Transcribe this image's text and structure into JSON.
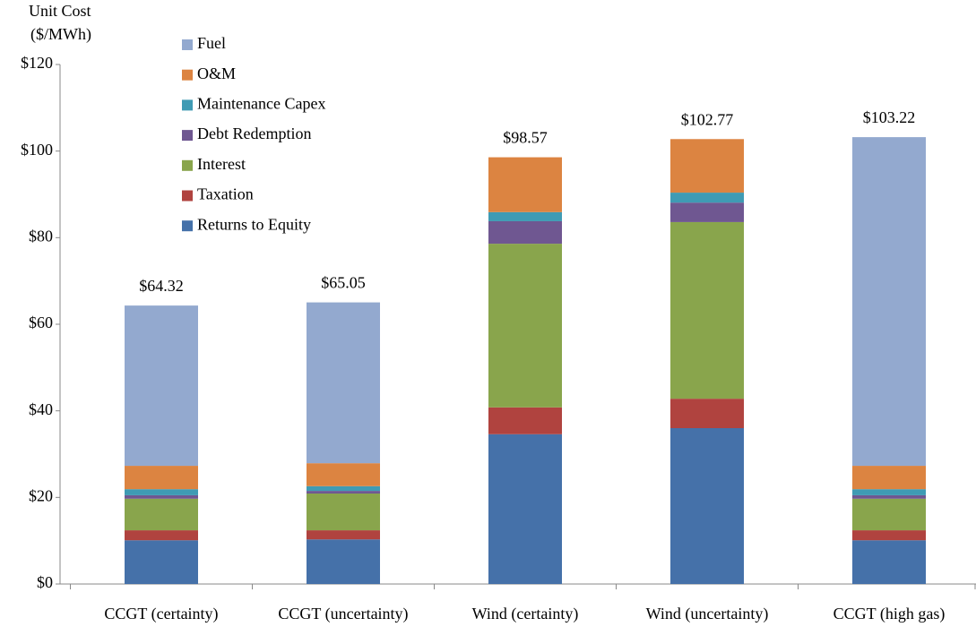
{
  "chart_data": {
    "type": "stacked_bar",
    "ylabel": [
      "Unit Cost",
      "($/MWh)"
    ],
    "categories": [
      "CCGT (certainty)",
      "CCGT (uncertainty)",
      "Wind (certainty)",
      "Wind (uncertainty)",
      "CCGT (high gas)"
    ],
    "series": [
      {
        "name": "Returns to Equity",
        "color": "#4571a9",
        "values": [
          10.1,
          10.3,
          34.6,
          36.0,
          10.1
        ]
      },
      {
        "name": "Taxation",
        "color": "#b0433f",
        "values": [
          2.3,
          2.1,
          6.2,
          6.8,
          2.3
        ]
      },
      {
        "name": "Interest",
        "color": "#89a54c",
        "values": [
          7.3,
          8.5,
          37.8,
          40.8,
          7.3
        ]
      },
      {
        "name": "Debt Redemption",
        "color": "#6f5791",
        "values": [
          0.8,
          0.6,
          5.2,
          4.5,
          0.8
        ]
      },
      {
        "name": "Maintenance Capex",
        "color": "#3f9bb4",
        "values": [
          1.4,
          1.1,
          2.1,
          2.3,
          1.4
        ]
      },
      {
        "name": "O&M",
        "color": "#dc8441",
        "values": [
          5.4,
          5.3,
          12.67,
          12.37,
          5.4
        ]
      },
      {
        "name": "Fuel",
        "color": "#93a9cf",
        "values": [
          37.02,
          37.15,
          0,
          0,
          75.92
        ]
      }
    ],
    "totals": [
      64.32,
      65.05,
      98.57,
      102.77,
      103.22
    ],
    "total_labels": [
      "$64.32",
      "$65.05",
      "$98.57",
      "$102.77",
      "$103.22"
    ],
    "ylim": [
      0,
      120
    ],
    "yticks": [
      {
        "value": 0,
        "label": "$0"
      },
      {
        "value": 20,
        "label": "$20"
      },
      {
        "value": 40,
        "label": "$40"
      },
      {
        "value": 60,
        "label": "$60"
      },
      {
        "value": 80,
        "label": "$80"
      },
      {
        "value": 100,
        "label": "$100"
      },
      {
        "value": 120,
        "label": "$120"
      }
    ],
    "legend": "top-left"
  }
}
